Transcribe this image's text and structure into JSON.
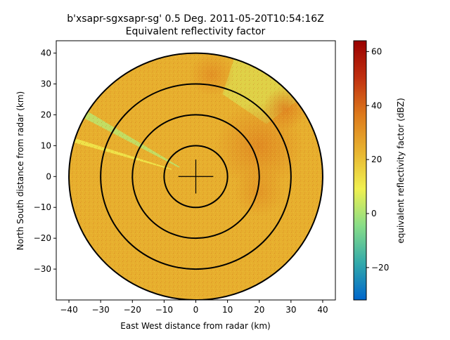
{
  "chart_data": {
    "type": "heatmap",
    "title_line1": "b'xsapr-sgxsapr-sg' 0.5 Deg. 2011-05-20T10:54:16Z",
    "title_line2": "Equivalent reflectivity factor",
    "xlabel": "East West distance from radar (km)",
    "ylabel": "North South distance from radar (km)",
    "xlim": [
      -44,
      44
    ],
    "ylim": [
      -40,
      44
    ],
    "xticks": [
      -40,
      -30,
      -20,
      -10,
      0,
      10,
      20,
      30,
      40
    ],
    "yticks": [
      -30,
      -20,
      -10,
      0,
      10,
      20,
      30,
      40
    ],
    "range_rings_km": [
      10,
      20,
      30,
      40
    ],
    "crosshair_half_length_km": 5.5,
    "colorbar": {
      "label": "equivalent reflectivity factor (dBZ)",
      "range": [
        -32,
        64
      ],
      "ticks": [
        -20,
        0,
        20,
        40,
        60
      ],
      "colors": [
        "#0066cc",
        "#33aaaa",
        "#88dd88",
        "#f0f050",
        "#e8b430",
        "#dd7a1c",
        "#c03010",
        "#990000"
      ]
    },
    "field": {
      "max_range_km": 40,
      "base_dbz": 24,
      "features": [
        {
          "kind": "beam",
          "azimuth_deg": 300,
          "width_deg": 3.5,
          "from_km": 6,
          "to_km": 40,
          "dbz": 2
        },
        {
          "kind": "beam",
          "azimuth_deg": 287,
          "width_deg": 2,
          "from_km": 8,
          "to_km": 40,
          "dbz": 10
        },
        {
          "kind": "wedge",
          "azimuth_deg": 35,
          "width_deg": 35,
          "from_km": 28,
          "to_km": 40,
          "dbz": 6
        },
        {
          "kind": "blob",
          "x_km": 20,
          "y_km": 10,
          "radius_km": 14,
          "dbz": 34
        },
        {
          "kind": "blob",
          "x_km": 28,
          "y_km": 22,
          "radius_km": 7,
          "dbz": 36
        },
        {
          "kind": "blob",
          "x_km": 5,
          "y_km": 33,
          "radius_km": 7,
          "dbz": 32
        },
        {
          "kind": "blob",
          "x_km": 20,
          "y_km": -5,
          "radius_km": 8,
          "dbz": 31
        }
      ]
    }
  }
}
